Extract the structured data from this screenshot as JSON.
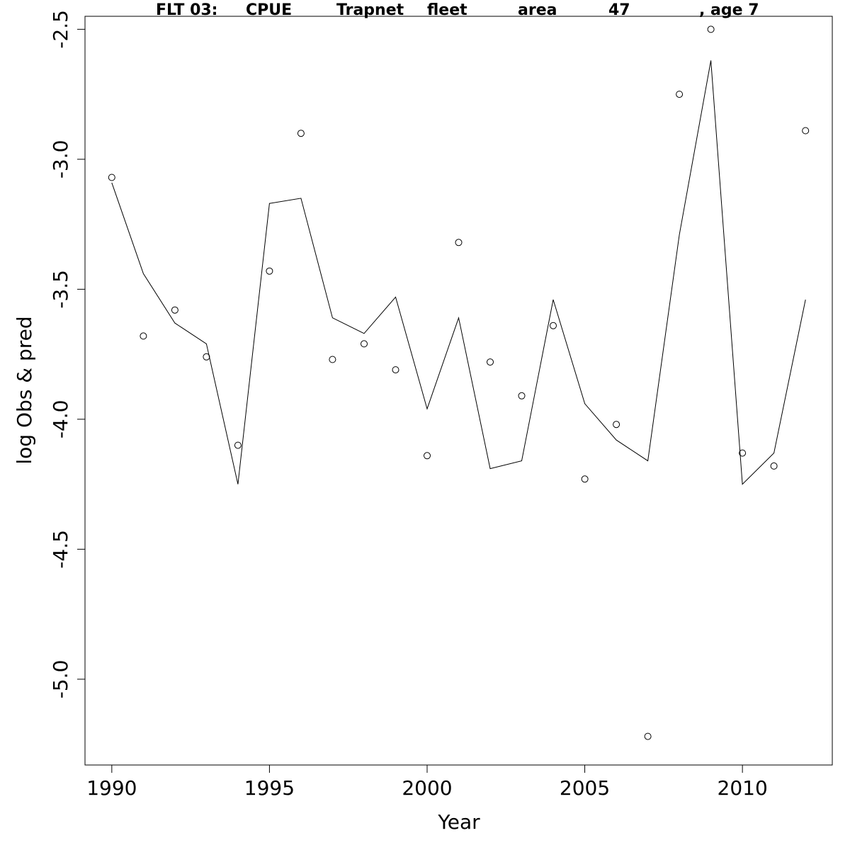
{
  "chart_data": {
    "type": "line",
    "title_parts": [
      "FLT 03:",
      "CPUE",
      "Trapnet",
      "fleet",
      "area",
      "47",
      ", age 7"
    ],
    "xlabel": "Year",
    "ylabel": "log Obs & pred",
    "xlim": [
      1989.15,
      2012.85
    ],
    "ylim": [
      -5.33,
      -2.45
    ],
    "x_ticks": [
      1990,
      1995,
      2000,
      2005,
      2010
    ],
    "x_tick_labels": [
      "1990",
      "1995",
      "2000",
      "2005",
      "2010"
    ],
    "y_ticks": [
      -2.5,
      -3.0,
      -3.5,
      -4.0,
      -4.5,
      -5.0
    ],
    "y_tick_labels": [
      "-2.5",
      "-3.0",
      "-3.5",
      "-4.0",
      "-4.5",
      "-5.0"
    ],
    "grid": false,
    "x": [
      1990,
      1991,
      1992,
      1993,
      1994,
      1995,
      1996,
      1997,
      1998,
      1999,
      2000,
      2001,
      2002,
      2003,
      2004,
      2005,
      2006,
      2007,
      2008,
      2009,
      2010,
      2011,
      2012
    ],
    "series": [
      {
        "kind": "points",
        "values": [
          -3.07,
          -3.68,
          -3.58,
          -3.76,
          -4.1,
          -3.43,
          -2.9,
          -3.77,
          -3.71,
          -3.81,
          -4.14,
          -3.32,
          -3.78,
          -3.91,
          -3.64,
          -4.23,
          -4.02,
          -5.22,
          -2.75,
          -2.5,
          -4.13,
          -4.18,
          -2.89
        ]
      },
      {
        "kind": "line",
        "values": [
          -3.09,
          -3.44,
          -3.63,
          -3.71,
          -4.25,
          -3.17,
          -3.15,
          -3.61,
          -3.67,
          -3.53,
          -3.96,
          -3.61,
          -4.19,
          -4.16,
          -3.54,
          -3.94,
          -4.08,
          -4.16,
          -3.29,
          -2.62,
          -4.25,
          -4.13,
          -3.54
        ]
      }
    ]
  }
}
